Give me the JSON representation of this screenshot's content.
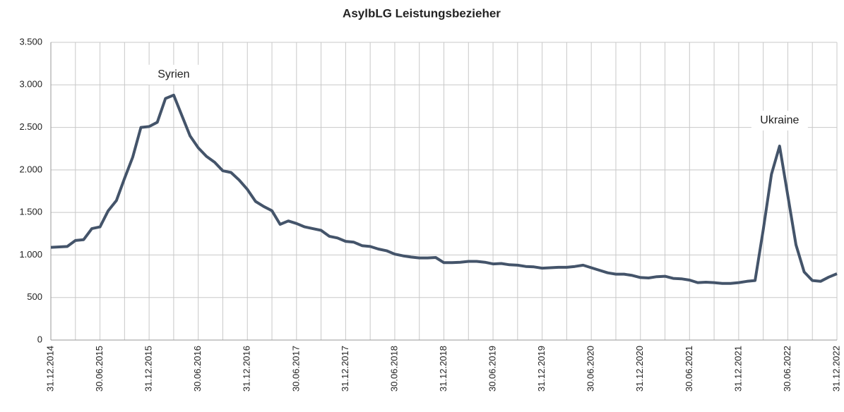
{
  "chart_data": {
    "type": "line",
    "title": "AsylbLG Leistungsbezieher",
    "categories": [
      "31.12.2014",
      null,
      null,
      null,
      null,
      null,
      "30.06.2015",
      null,
      null,
      null,
      null,
      null,
      "31.12.2015",
      null,
      null,
      null,
      null,
      null,
      "30.06.2016",
      null,
      null,
      null,
      null,
      null,
      "31.12.2016",
      null,
      null,
      null,
      null,
      null,
      "30.06.2017",
      null,
      null,
      null,
      null,
      null,
      "31.12.2017",
      null,
      null,
      null,
      null,
      null,
      "30.06.2018",
      null,
      null,
      null,
      null,
      null,
      "31.12.2018",
      null,
      null,
      null,
      null,
      null,
      "30.06.2019",
      null,
      null,
      null,
      null,
      null,
      "31.12.2019",
      null,
      null,
      null,
      null,
      null,
      "30.06.2020",
      null,
      null,
      null,
      null,
      null,
      "31.12.2020",
      null,
      null,
      null,
      null,
      null,
      "30.06.2021",
      null,
      null,
      null,
      null,
      null,
      "31.12.2021",
      null,
      null,
      null,
      null,
      null,
      "30.06.2022",
      null,
      null,
      null,
      null,
      null,
      "31.12.2022"
    ],
    "series": [
      {
        "name": "AsylbLG Leistungsbezieher",
        "color": "#44546a",
        "values": [
          1090,
          1095,
          1100,
          1170,
          1180,
          1310,
          1330,
          1520,
          1640,
          1900,
          2150,
          2500,
          2510,
          2560,
          2840,
          2880,
          2640,
          2400,
          2260,
          2160,
          2090,
          1990,
          1970,
          1880,
          1770,
          1630,
          1570,
          1520,
          1360,
          1400,
          1370,
          1330,
          1310,
          1290,
          1220,
          1200,
          1160,
          1150,
          1110,
          1100,
          1070,
          1050,
          1010,
          990,
          975,
          965,
          965,
          970,
          910,
          910,
          915,
          925,
          925,
          915,
          895,
          900,
          885,
          880,
          865,
          860,
          845,
          850,
          855,
          855,
          865,
          880,
          850,
          820,
          790,
          775,
          775,
          760,
          735,
          730,
          745,
          750,
          725,
          720,
          705,
          675,
          680,
          675,
          665,
          665,
          675,
          690,
          700,
          1300,
          1950,
          2280,
          1700,
          1120,
          800,
          700,
          690,
          740,
          780
        ]
      }
    ],
    "ylim": [
      0,
      3500
    ],
    "yticks": [
      0,
      500,
      {
        "value": 1000,
        "label": "1.000"
      },
      {
        "value": 1500,
        "label": "1.500"
      },
      {
        "value": 2000,
        "label": "2.000"
      },
      {
        "value": 2500,
        "label": "2.500"
      },
      {
        "value": 3000,
        "label": "3.000"
      },
      {
        "value": 3500,
        "label": "3.500"
      }
    ],
    "grid": true,
    "annotations": [
      {
        "text": "Syrien",
        "index": 15,
        "value": 3120
      },
      {
        "text": "Ukraine",
        "index": 89,
        "value": 2580
      }
    ]
  }
}
